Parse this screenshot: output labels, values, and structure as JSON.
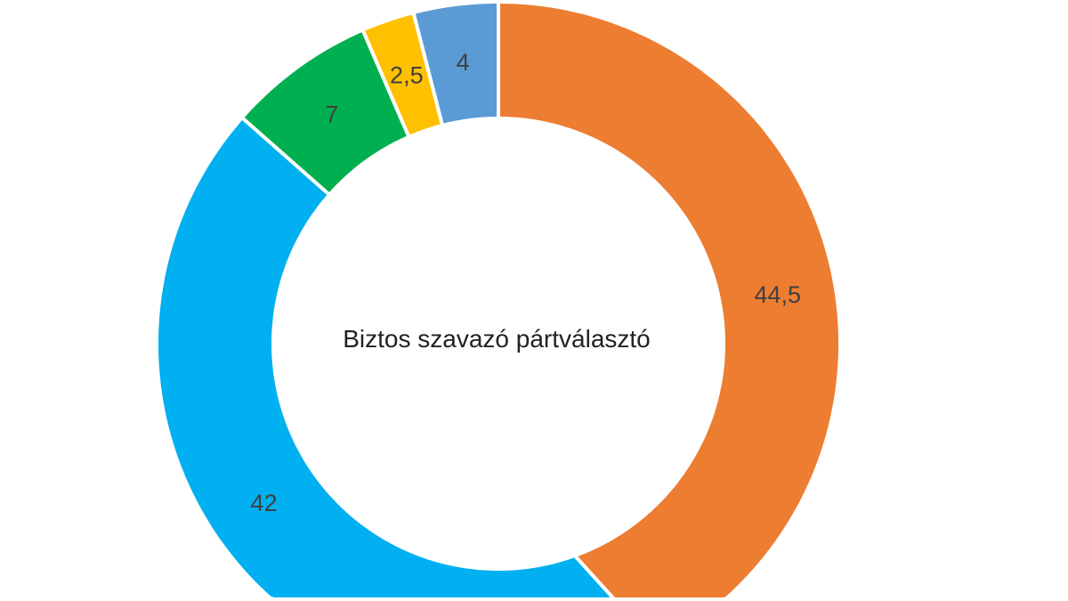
{
  "chart_data": {
    "type": "pie",
    "variant": "donut",
    "center_label": "Biztos szavazó pártválasztó",
    "start": "top",
    "direction": "clockwise",
    "slices": [
      {
        "value": 44.5,
        "label": "44,5",
        "color": "#ED7D31"
      },
      {
        "value": 42,
        "label": "42",
        "color": "#00B0F0"
      },
      {
        "value": 7,
        "label": "7",
        "color": "#00B050"
      },
      {
        "value": 2.5,
        "label": "2,5",
        "color": "#FFC000"
      },
      {
        "value": 4,
        "label": "4",
        "color": "#5B9BD5"
      }
    ],
    "label_color": "#404040"
  }
}
